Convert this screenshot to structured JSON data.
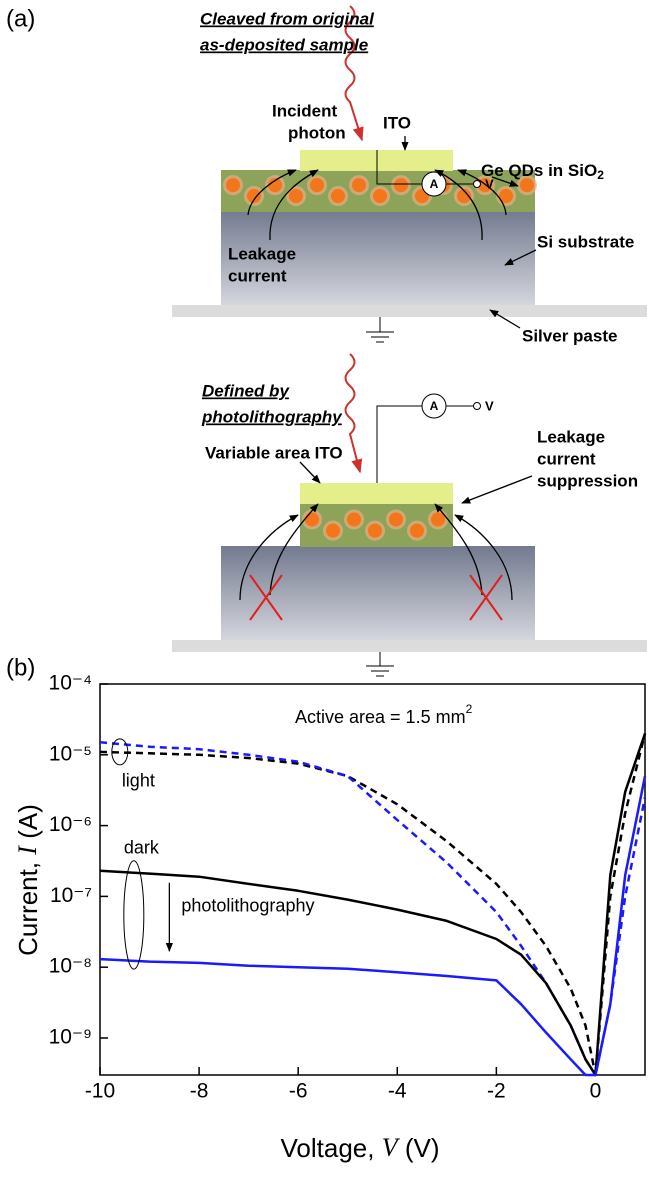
{
  "panel_a": {
    "label": "(a)",
    "top": {
      "heading": [
        "Cleaved from original",
        "as-deposited sample"
      ],
      "incident": [
        "Incident",
        "photon"
      ],
      "ito": "ITO",
      "qds": "Ge QDs in SiO",
      "qds_sub": "2",
      "leakage": [
        "Leakage",
        "current"
      ],
      "substrate": "Si substrate",
      "silver": "Silver paste",
      "ammeter": "A",
      "voltage": "V"
    },
    "bottom": {
      "heading": [
        "Defined by",
        "photolithography"
      ],
      "ito": "Variable area ITO",
      "suppression": [
        "Leakage",
        "current",
        "suppression"
      ],
      "ammeter": "A",
      "voltage": "V"
    }
  },
  "panel_b": {
    "label": "(b)"
  },
  "chart_data": {
    "type": "line",
    "xlabel": {
      "text": "Voltage, ",
      "var": "V",
      "unit": " (V)"
    },
    "ylabel": {
      "text": "Current, ",
      "var": "I",
      "unit": " (A)"
    },
    "annotations": {
      "area": "Active area = 1.5 mm",
      "area_sup": "2",
      "light": "light",
      "dark": "dark",
      "arrow": "photolithography"
    },
    "log_y": true,
    "x": [
      -10,
      -9,
      -8,
      -7,
      -6,
      -5,
      -4,
      -3,
      -2,
      -1.5,
      -1,
      -0.5,
      -0.2,
      0,
      0.3,
      0.6,
      1
    ],
    "series": [
      {
        "color": "#000000",
        "dash": true,
        "values": [
          1.1e-05,
          1.05e-05,
          1e-05,
          9e-06,
          7.5e-06,
          5e-06,
          2e-06,
          6e-07,
          1.5e-07,
          6e-08,
          2e-08,
          5e-09,
          1.5e-09,
          3e-10,
          1e-07,
          1.5e-06,
          2e-05
        ]
      },
      {
        "color": "#1a1aff",
        "dash": true,
        "values": [
          1.5e-05,
          1.3e-05,
          1.2e-05,
          1e-05,
          8e-06,
          5e-06,
          1.2e-06,
          3e-07,
          6e-08,
          2e-08,
          6e-09,
          1.5e-09,
          5e-10,
          3e-10,
          3e-09,
          1e-07,
          2.5e-06
        ]
      },
      {
        "color": "#000000",
        "dash": false,
        "values": [
          2.3e-07,
          2.1e-07,
          1.9e-07,
          1.5e-07,
          1.2e-07,
          9e-08,
          6.5e-08,
          4.5e-08,
          2.5e-08,
          1.5e-08,
          6e-09,
          1.5e-09,
          5e-10,
          3e-10,
          2e-07,
          3e-06,
          2e-05
        ]
      },
      {
        "color": "#1a1aff",
        "dash": false,
        "values": [
          1.3e-08,
          1.2e-08,
          1.15e-08,
          1.05e-08,
          1e-08,
          9.5e-09,
          8.5e-09,
          7.5e-09,
          6.5e-09,
          3e-09,
          1.2e-09,
          5e-10,
          3e-10,
          3e-10,
          3e-09,
          2e-07,
          5e-06
        ]
      }
    ],
    "xlim": [
      -10,
      1
    ],
    "xticks": [
      -10,
      -8,
      -6,
      -4,
      -2,
      0
    ],
    "ylim": [
      3e-10,
      0.0001
    ],
    "yticks": [
      {
        "value": 0.0001,
        "label": "10⁻⁴"
      },
      {
        "value": 1e-05,
        "label": "10⁻⁵"
      },
      {
        "value": 1e-06,
        "label": "10⁻⁶"
      },
      {
        "value": 1e-07,
        "label": "10⁻⁷"
      },
      {
        "value": 1e-08,
        "label": "10⁻⁸"
      },
      {
        "value": 1e-09,
        "label": "10⁻⁹"
      }
    ]
  }
}
